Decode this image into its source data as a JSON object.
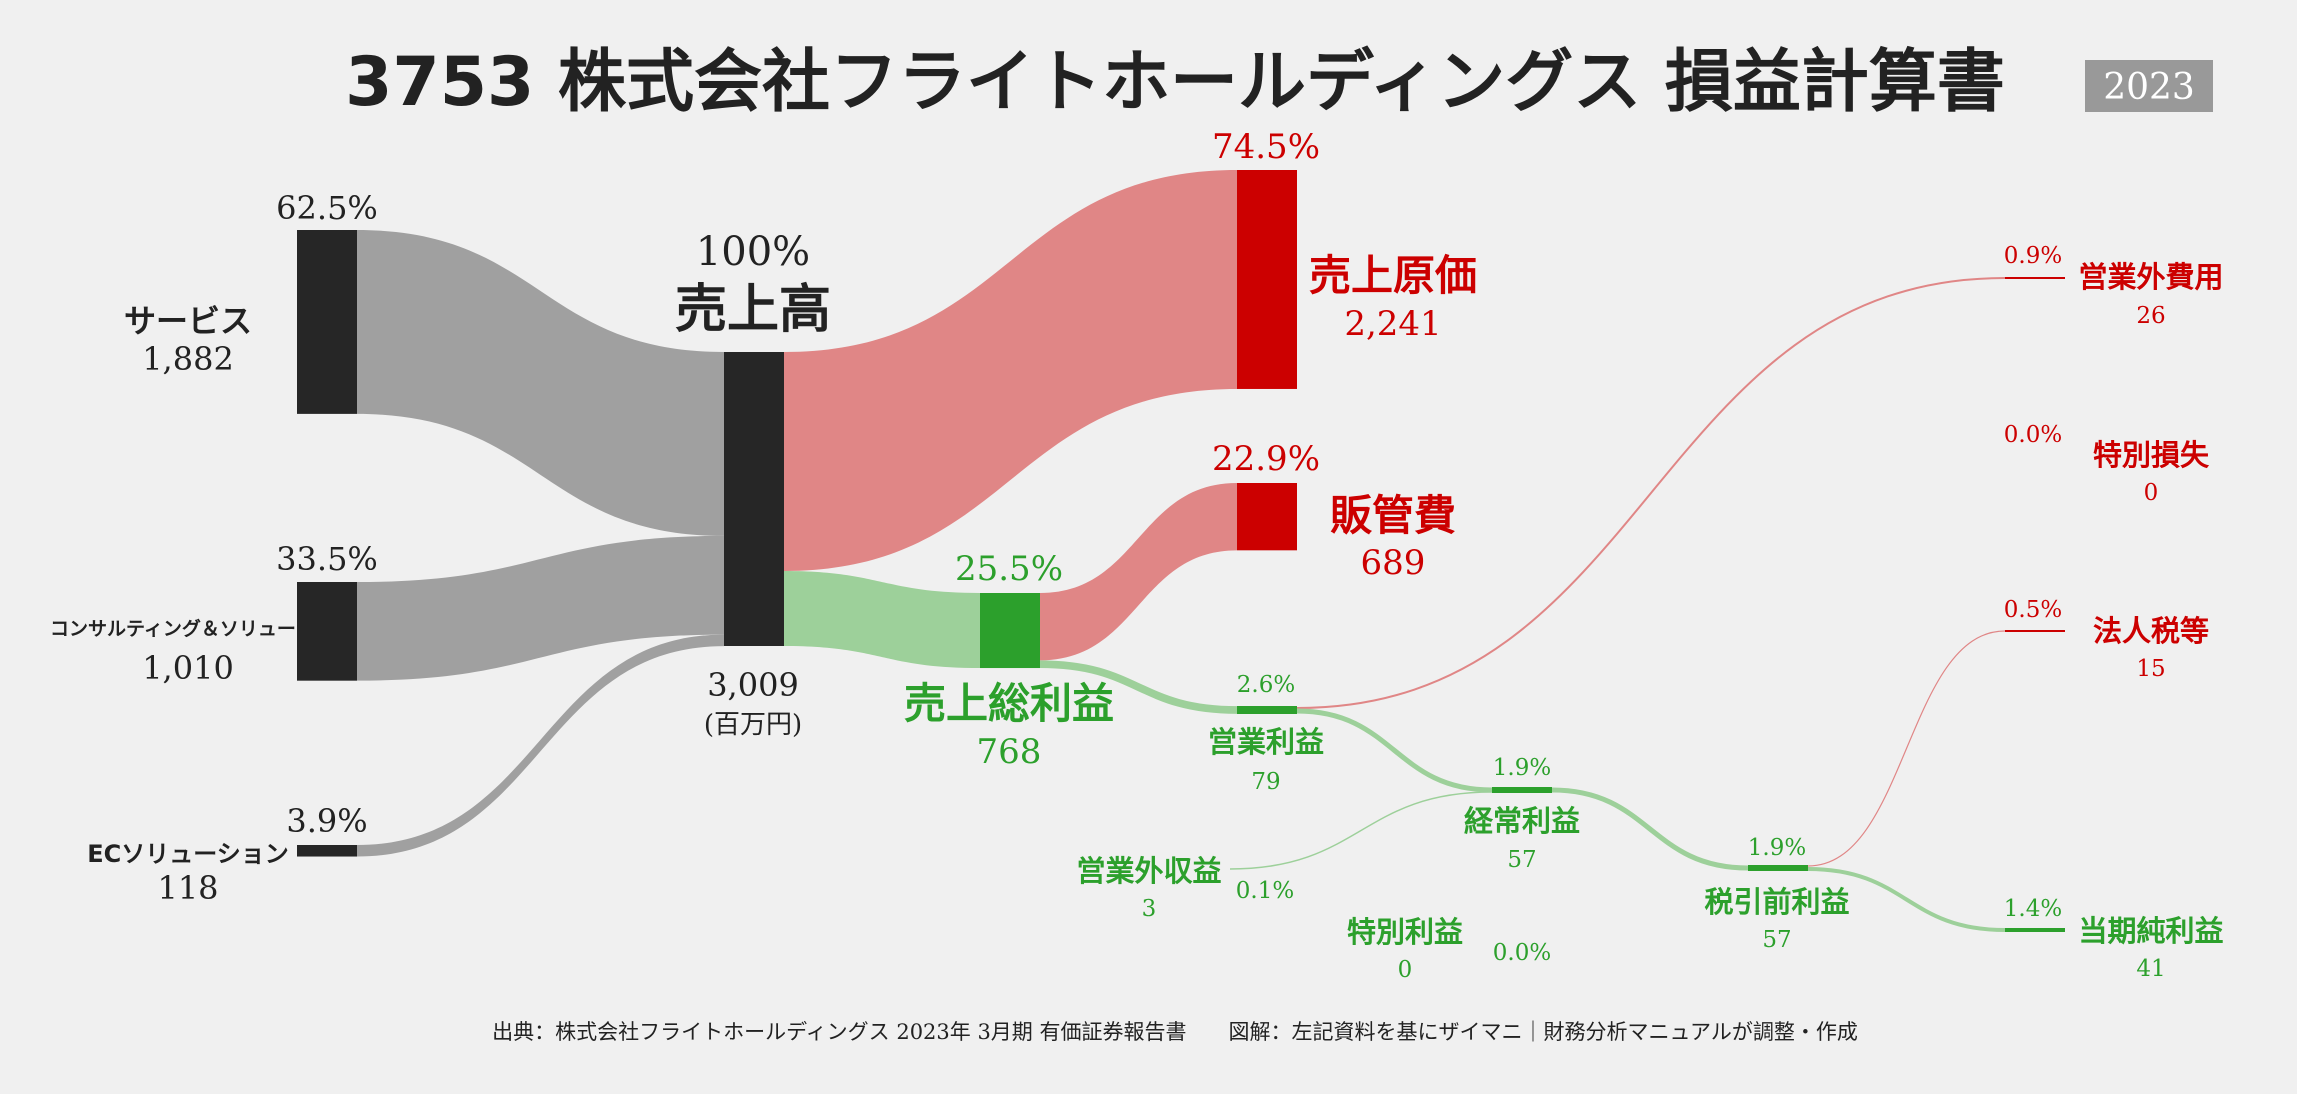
{
  "header": {
    "title": "3753 株式会社フライトホールディングス 損益計算書",
    "year": "2023"
  },
  "footer": {
    "source": "出典：株式会社フライトホールディングス 2023年 3月期 有価証券報告書　　図解：左記資料を基にザイマニ｜財務分析マニュアルが調整・作成"
  },
  "colors": {
    "revenue_bar": "#262626",
    "source_flow": "#a0a0a0",
    "cost_bar": "#cc0000",
    "cost_flow": "#e08686",
    "profit_bar": "#2ca02c",
    "profit_flow": "#9dd09a"
  },
  "chart_data": {
    "type": "sankey",
    "unit": "(百万円)",
    "revenue": {
      "label": "売上高",
      "value": 3009,
      "value_text": "3,009",
      "pct": "100%"
    },
    "segments": [
      {
        "label": "サービス",
        "value": 1882,
        "value_text": "1,882",
        "pct": "62.5%"
      },
      {
        "label": "コンサルティング＆ソリューション",
        "value": 1010,
        "value_text": "1,010",
        "pct": "33.5%"
      },
      {
        "label": "ECソリューション",
        "value": 118,
        "value_text": "118",
        "pct": "3.9%"
      }
    ],
    "cost_of_sales": {
      "label": "売上原価",
      "value": 2241,
      "value_text": "2,241",
      "pct": "74.5%"
    },
    "gross_profit": {
      "label": "売上総利益",
      "value": 768,
      "value_text": "768",
      "pct": "25.5%"
    },
    "sga": {
      "label": "販管費",
      "value": 689,
      "value_text": "689",
      "pct": "22.9%"
    },
    "operating_profit": {
      "label": "営業利益",
      "value": 79,
      "value_text": "79",
      "pct": "2.6%"
    },
    "non_operating_expense": {
      "label": "営業外費用",
      "value": 26,
      "value_text": "26",
      "pct": "0.9%"
    },
    "non_operating_income": {
      "label": "営業外収益",
      "value": 3,
      "value_text": "3",
      "pct": "0.1%"
    },
    "ordinary_profit": {
      "label": "経常利益",
      "value": 57,
      "value_text": "57",
      "pct": "1.9%"
    },
    "extraordinary_income": {
      "label": "特別利益",
      "value": 0,
      "value_text": "0",
      "pct": "0.0%"
    },
    "extraordinary_loss": {
      "label": "特別損失",
      "value": 0,
      "value_text": "0",
      "pct": "0.0%"
    },
    "pretax_profit": {
      "label": "税引前利益",
      "value": 57,
      "value_text": "57",
      "pct": "1.9%"
    },
    "income_taxes": {
      "label": "法人税等",
      "value": 15,
      "value_text": "15",
      "pct": "0.5%"
    },
    "net_income": {
      "label": "当期純利益",
      "value": 41,
      "value_text": "41",
      "pct": "1.4%"
    }
  }
}
